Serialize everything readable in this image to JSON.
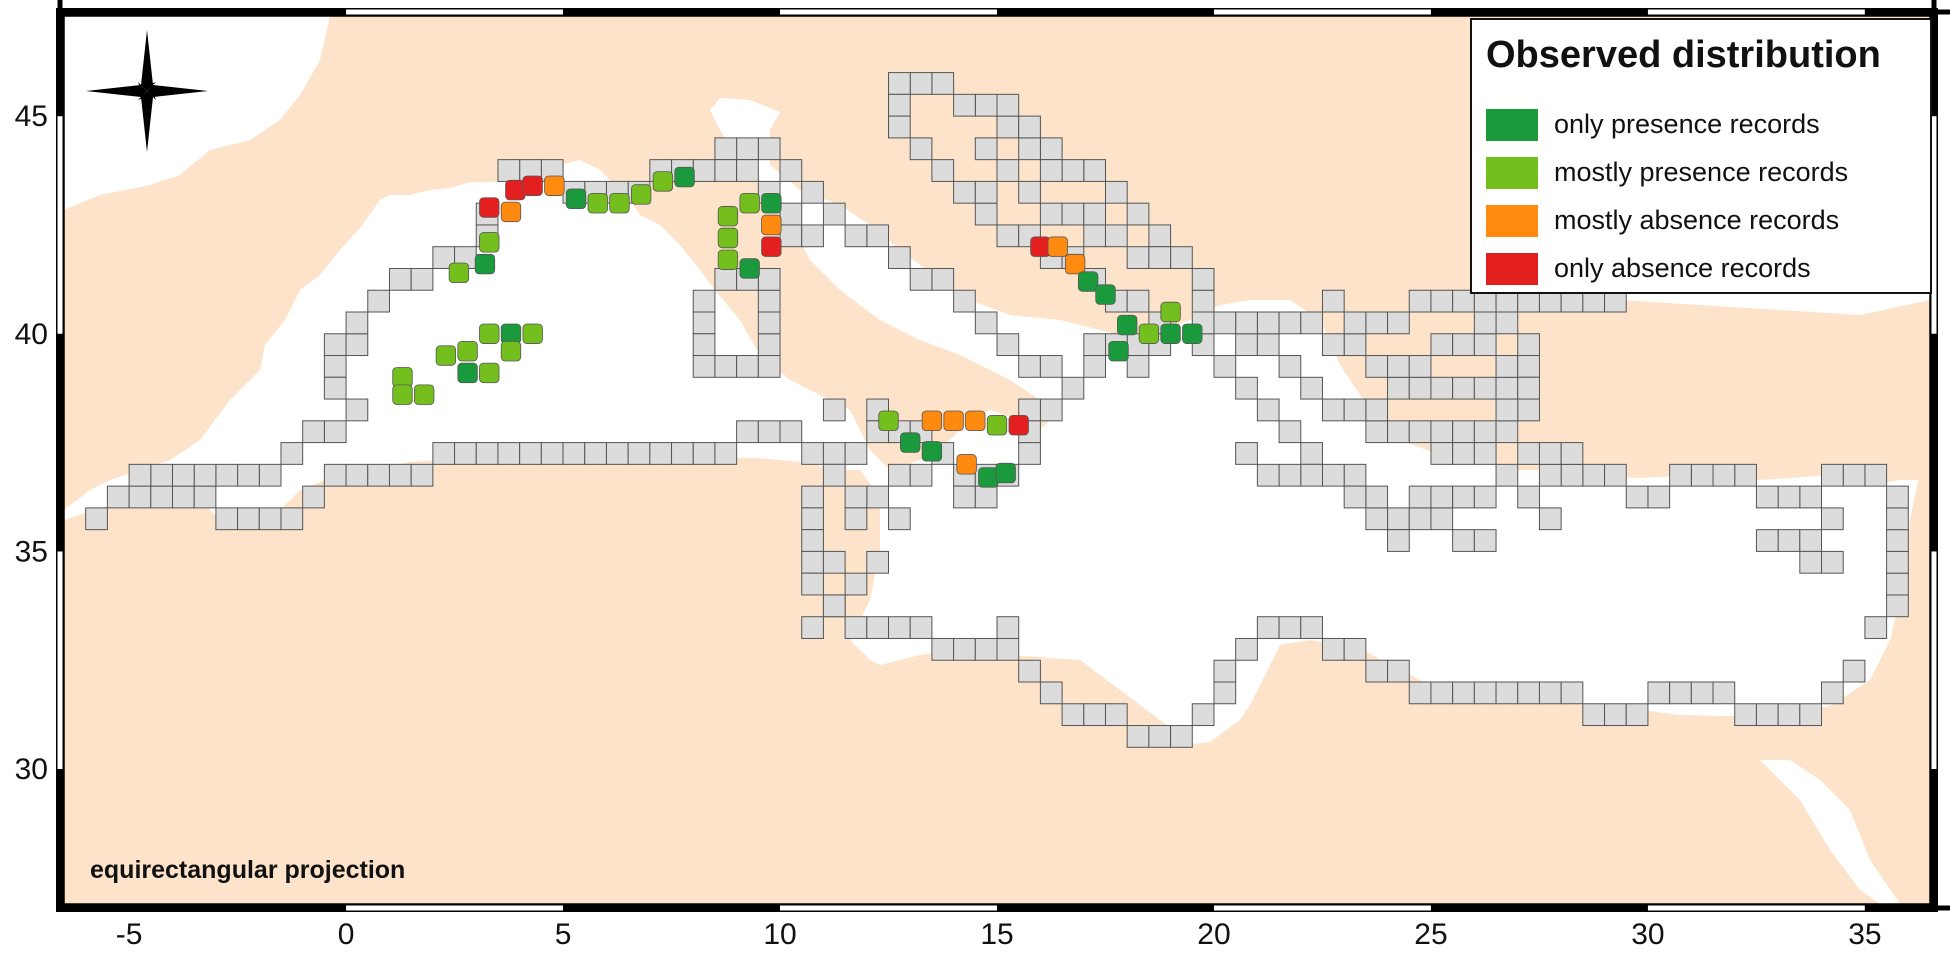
{
  "legend": {
    "title": "Observed distribution",
    "items": [
      {
        "label": "only presence records",
        "color": "#1a9a3c"
      },
      {
        "label": "mostly presence records",
        "color": "#74bf1e"
      },
      {
        "label": "mostly absence records",
        "color": "#ff8a10"
      },
      {
        "label": "only absence records",
        "color": "#e3201f"
      }
    ]
  },
  "projection_label": "equirectangular projection",
  "axes": {
    "x_ticks": [
      -5,
      0,
      5,
      10,
      15,
      20,
      25,
      30,
      35
    ],
    "y_ticks": [
      30,
      35,
      40,
      45
    ],
    "x_range": [
      -6.5,
      36.5
    ],
    "y_range": [
      26.9,
      47.3
    ]
  },
  "colors": {
    "land": "#fde3c9",
    "sea": "#ffffff",
    "grid_cell": "#dcdcdc",
    "grid_line": "#555555",
    "frame": "#000000"
  },
  "icons": {
    "compass": "compass-rose-icon"
  },
  "survey_grid_cells": [
    [
      -6.0,
      35.5
    ],
    [
      -5.5,
      36.0
    ],
    [
      -5.0,
      36.0
    ],
    [
      -4.5,
      36.0
    ],
    [
      -4.0,
      36.0
    ],
    [
      -3.5,
      36.0
    ],
    [
      -3.0,
      35.5
    ],
    [
      -2.5,
      35.5
    ],
    [
      -2.0,
      35.5
    ],
    [
      -1.5,
      35.5
    ],
    [
      -1.0,
      36.0
    ],
    [
      -0.5,
      36.5
    ],
    [
      0.0,
      36.5
    ],
    [
      0.5,
      36.5
    ],
    [
      1.0,
      36.5
    ],
    [
      1.5,
      36.5
    ],
    [
      2.0,
      37.0
    ],
    [
      2.5,
      37.0
    ],
    [
      3.0,
      37.0
    ],
    [
      3.5,
      37.0
    ],
    [
      4.0,
      37.0
    ],
    [
      4.5,
      37.0
    ],
    [
      5.0,
      37.0
    ],
    [
      5.5,
      37.0
    ],
    [
      6.0,
      37.0
    ],
    [
      6.5,
      37.0
    ],
    [
      7.0,
      37.0
    ],
    [
      7.5,
      37.0
    ],
    [
      8.0,
      37.0
    ],
    [
      8.5,
      37.0
    ],
    [
      9.0,
      37.5
    ],
    [
      9.5,
      37.5
    ],
    [
      10.0,
      37.5
    ],
    [
      10.5,
      37.0
    ],
    [
      11.0,
      37.0
    ],
    [
      11.0,
      36.5
    ],
    [
      10.5,
      36.0
    ],
    [
      10.5,
      35.5
    ],
    [
      10.5,
      35.0
    ],
    [
      10.5,
      34.5
    ],
    [
      10.5,
      34.0
    ],
    [
      11.0,
      33.5
    ],
    [
      11.5,
      33.0
    ],
    [
      12.0,
      33.0
    ],
    [
      12.5,
      33.0
    ],
    [
      13.0,
      33.0
    ],
    [
      13.5,
      32.5
    ],
    [
      14.0,
      32.5
    ],
    [
      14.5,
      32.5
    ],
    [
      15.0,
      32.5
    ],
    [
      15.5,
      32.0
    ],
    [
      16.0,
      31.5
    ],
    [
      16.5,
      31.0
    ],
    [
      17.0,
      31.0
    ],
    [
      17.5,
      31.0
    ],
    [
      18.0,
      30.5
    ],
    [
      18.5,
      30.5
    ],
    [
      19.0,
      30.5
    ],
    [
      19.5,
      31.0
    ],
    [
      20.0,
      31.5
    ],
    [
      20.0,
      32.0
    ],
    [
      20.5,
      32.5
    ],
    [
      21.0,
      33.0
    ],
    [
      21.5,
      33.0
    ],
    [
      22.0,
      33.0
    ],
    [
      22.5,
      32.5
    ],
    [
      23.0,
      32.5
    ],
    [
      23.5,
      32.0
    ],
    [
      24.0,
      32.0
    ],
    [
      24.5,
      31.5
    ],
    [
      25.0,
      31.5
    ],
    [
      25.5,
      31.5
    ],
    [
      26.0,
      31.5
    ],
    [
      26.5,
      31.5
    ],
    [
      27.0,
      31.5
    ],
    [
      27.5,
      31.5
    ],
    [
      28.0,
      31.5
    ],
    [
      28.5,
      31.0
    ],
    [
      29.0,
      31.0
    ],
    [
      29.5,
      31.0
    ],
    [
      30.0,
      31.5
    ],
    [
      30.5,
      31.5
    ],
    [
      31.0,
      31.5
    ],
    [
      31.5,
      31.5
    ],
    [
      32.0,
      31.0
    ],
    [
      32.5,
      31.0
    ],
    [
      33.0,
      31.0
    ],
    [
      33.5,
      31.0
    ],
    [
      34.0,
      31.5
    ],
    [
      34.5,
      32.0
    ],
    [
      35.0,
      33.0
    ],
    [
      35.5,
      33.5
    ],
    [
      35.5,
      34.0
    ],
    [
      35.5,
      34.5
    ],
    [
      35.5,
      35.0
    ],
    [
      35.5,
      35.5
    ],
    [
      35.5,
      36.0
    ],
    [
      35.0,
      36.5
    ],
    [
      34.5,
      36.5
    ],
    [
      34.0,
      36.5
    ],
    [
      33.5,
      36.0
    ],
    [
      33.0,
      36.0
    ],
    [
      32.5,
      36.0
    ],
    [
      32.0,
      36.5
    ],
    [
      31.5,
      36.5
    ],
    [
      31.0,
      36.5
    ],
    [
      30.5,
      36.5
    ],
    [
      30.0,
      36.0
    ],
    [
      29.5,
      36.0
    ],
    [
      29.0,
      36.5
    ],
    [
      28.5,
      36.5
    ],
    [
      28.0,
      36.5
    ],
    [
      27.5,
      36.5
    ],
    [
      27.0,
      37.0
    ],
    [
      33.0,
      35.0
    ],
    [
      33.5,
      35.0
    ],
    [
      34.0,
      35.5
    ],
    [
      32.5,
      35.0
    ],
    [
      34.0,
      34.5
    ],
    [
      33.5,
      34.5
    ],
    [
      24.0,
      35.5
    ],
    [
      24.5,
      35.5
    ],
    [
      25.0,
      35.5
    ],
    [
      25.5,
      35.0
    ],
    [
      26.0,
      35.0
    ],
    [
      23.5,
      35.5
    ],
    [
      24.0,
      35.0
    ],
    [
      23.0,
      36.5
    ],
    [
      22.5,
      36.5
    ],
    [
      22.0,
      37.0
    ],
    [
      21.5,
      37.5
    ],
    [
      21.0,
      38.0
    ],
    [
      20.5,
      38.5
    ],
    [
      20.0,
      39.0
    ],
    [
      19.5,
      39.5
    ],
    [
      23.5,
      37.5
    ],
    [
      24.0,
      37.5
    ],
    [
      24.5,
      37.5
    ],
    [
      25.0,
      37.5
    ],
    [
      25.5,
      37.5
    ],
    [
      26.0,
      37.5
    ],
    [
      26.5,
      37.5
    ],
    [
      23.5,
      38.0
    ],
    [
      24.0,
      38.5
    ],
    [
      24.5,
      38.5
    ],
    [
      25.0,
      38.5
    ],
    [
      25.5,
      38.5
    ],
    [
      26.0,
      38.5
    ],
    [
      26.5,
      38.5
    ],
    [
      23.5,
      39.0
    ],
    [
      24.0,
      39.0
    ],
    [
      24.5,
      39.0
    ],
    [
      25.0,
      39.5
    ],
    [
      25.5,
      39.5
    ],
    [
      26.0,
      39.5
    ],
    [
      23.0,
      39.5
    ],
    [
      23.5,
      40.0
    ],
    [
      24.0,
      40.0
    ],
    [
      24.5,
      40.5
    ],
    [
      25.0,
      40.5
    ],
    [
      25.5,
      40.5
    ],
    [
      26.0,
      40.5
    ],
    [
      26.5,
      40.0
    ],
    [
      26.5,
      39.0
    ],
    [
      23.0,
      40.0
    ],
    [
      22.5,
      40.5
    ],
    [
      22.5,
      39.5
    ],
    [
      22.0,
      38.5
    ],
    [
      22.5,
      38.0
    ],
    [
      23.0,
      38.0
    ],
    [
      22.0,
      36.5
    ],
    [
      21.5,
      36.5
    ],
    [
      21.0,
      36.5
    ],
    [
      20.5,
      37.0
    ],
    [
      25.0,
      37.0
    ],
    [
      25.5,
      37.0
    ],
    [
      26.0,
      37.0
    ],
    [
      26.5,
      36.5
    ],
    [
      27.0,
      36.0
    ],
    [
      27.5,
      35.5
    ],
    [
      24.5,
      36.0
    ],
    [
      25.0,
      36.0
    ],
    [
      25.5,
      36.0
    ],
    [
      26.0,
      36.0
    ],
    [
      23.5,
      36.0
    ],
    [
      23.0,
      36.0
    ],
    [
      26.0,
      40.0
    ],
    [
      26.5,
      40.5
    ],
    [
      27.0,
      40.5
    ],
    [
      27.5,
      40.5
    ],
    [
      28.0,
      40.5
    ],
    [
      28.5,
      40.5
    ],
    [
      29.0,
      40.5
    ],
    [
      27.0,
      39.5
    ],
    [
      27.0,
      39.0
    ],
    [
      27.0,
      38.5
    ],
    [
      27.0,
      38.0
    ],
    [
      26.5,
      38.0
    ],
    [
      27.5,
      37.0
    ],
    [
      28.0,
      37.0
    ],
    [
      19.5,
      40.0
    ],
    [
      19.5,
      40.5
    ],
    [
      19.5,
      41.0
    ],
    [
      19.0,
      41.5
    ],
    [
      18.5,
      42.0
    ],
    [
      18.0,
      42.5
    ],
    [
      17.5,
      43.0
    ],
    [
      17.0,
      43.5
    ],
    [
      16.5,
      43.5
    ],
    [
      16.0,
      44.0
    ],
    [
      15.5,
      44.0
    ],
    [
      15.0,
      44.5
    ],
    [
      14.5,
      45.0
    ],
    [
      14.0,
      45.0
    ],
    [
      13.5,
      45.5
    ],
    [
      13.0,
      45.5
    ],
    [
      12.5,
      45.5
    ],
    [
      12.5,
      45.0
    ],
    [
      12.5,
      44.5
    ],
    [
      13.0,
      44.0
    ],
    [
      13.5,
      43.5
    ],
    [
      14.0,
      43.0
    ],
    [
      14.5,
      42.5
    ],
    [
      15.0,
      42.0
    ],
    [
      15.5,
      42.0
    ],
    [
      16.0,
      41.5
    ],
    [
      16.5,
      41.5
    ],
    [
      17.0,
      41.0
    ],
    [
      17.5,
      40.5
    ],
    [
      18.0,
      40.5
    ],
    [
      18.5,
      40.0
    ],
    [
      18.0,
      39.5
    ],
    [
      17.5,
      39.5
    ],
    [
      17.0,
      39.5
    ],
    [
      17.0,
      39.0
    ],
    [
      16.5,
      38.5
    ],
    [
      16.0,
      38.0
    ],
    [
      15.5,
      38.0
    ],
    [
      14.5,
      40.0
    ],
    [
      15.0,
      39.5
    ],
    [
      15.5,
      39.0
    ],
    [
      16.0,
      39.0
    ],
    [
      14.0,
      40.5
    ],
    [
      13.5,
      41.0
    ],
    [
      13.0,
      41.0
    ],
    [
      12.5,
      41.5
    ],
    [
      12.0,
      42.0
    ],
    [
      11.5,
      42.0
    ],
    [
      11.0,
      42.5
    ],
    [
      10.5,
      43.0
    ],
    [
      10.0,
      43.5
    ],
    [
      9.5,
      44.0
    ],
    [
      9.0,
      44.0
    ],
    [
      8.5,
      44.0
    ],
    [
      8.0,
      43.5
    ],
    [
      7.5,
      43.5
    ],
    [
      15.0,
      45.0
    ],
    [
      15.5,
      44.5
    ],
    [
      16.0,
      43.5
    ],
    [
      14.5,
      44.0
    ],
    [
      15.0,
      43.5
    ],
    [
      15.5,
      43.0
    ],
    [
      16.0,
      42.5
    ],
    [
      16.5,
      42.5
    ],
    [
      17.0,
      42.0
    ],
    [
      17.5,
      42.0
    ],
    [
      18.0,
      41.5
    ],
    [
      18.5,
      41.5
    ],
    [
      14.5,
      43.0
    ],
    [
      17.0,
      42.5
    ],
    [
      12.0,
      38.0
    ],
    [
      12.5,
      37.5
    ],
    [
      13.0,
      37.5
    ],
    [
      13.5,
      37.0
    ],
    [
      14.0,
      36.5
    ],
    [
      14.5,
      36.5
    ],
    [
      15.0,
      36.5
    ],
    [
      15.5,
      37.0
    ],
    [
      15.5,
      37.5
    ],
    [
      12.0,
      37.5
    ],
    [
      12.5,
      36.5
    ],
    [
      13.0,
      36.5
    ],
    [
      12.0,
      36.0
    ],
    [
      11.5,
      36.0
    ],
    [
      11.5,
      35.5
    ],
    [
      12.5,
      35.5
    ],
    [
      14.0,
      36.0
    ],
    [
      14.5,
      36.0
    ],
    [
      11.5,
      37.0
    ],
    [
      11.0,
      38.0
    ],
    [
      1.0,
      41.0
    ],
    [
      1.5,
      41.0
    ],
    [
      2.0,
      41.5
    ],
    [
      2.5,
      41.5
    ],
    [
      3.0,
      42.0
    ],
    [
      3.0,
      42.5
    ],
    [
      -0.5,
      39.5
    ],
    [
      0.0,
      39.5
    ],
    [
      0.0,
      40.0
    ],
    [
      0.5,
      40.5
    ],
    [
      -0.5,
      39.0
    ],
    [
      -0.5,
      38.5
    ],
    [
      0.0,
      38.0
    ],
    [
      -0.5,
      37.5
    ],
    [
      -1.0,
      37.5
    ],
    [
      -1.5,
      37.0
    ],
    [
      -2.0,
      36.5
    ],
    [
      -2.5,
      36.5
    ],
    [
      -3.0,
      36.5
    ],
    [
      -3.5,
      36.5
    ],
    [
      -4.0,
      36.5
    ],
    [
      -4.5,
      36.5
    ],
    [
      -5.0,
      36.5
    ],
    [
      8.0,
      40.5
    ],
    [
      8.0,
      40.0
    ],
    [
      8.0,
      39.5
    ],
    [
      8.0,
      39.0
    ],
    [
      8.5,
      39.0
    ],
    [
      9.0,
      39.0
    ],
    [
      9.5,
      39.0
    ],
    [
      9.5,
      39.5
    ],
    [
      9.5,
      40.0
    ],
    [
      9.5,
      40.5
    ],
    [
      9.5,
      41.0
    ],
    [
      8.5,
      41.0
    ],
    [
      9.0,
      41.0
    ],
    [
      10.0,
      42.0
    ],
    [
      10.5,
      42.0
    ],
    [
      7.0,
      43.5
    ],
    [
      6.5,
      43.0
    ],
    [
      6.0,
      43.0
    ],
    [
      5.5,
      43.0
    ],
    [
      5.0,
      43.0
    ],
    [
      4.5,
      43.5
    ],
    [
      4.0,
      43.5
    ],
    [
      3.5,
      43.5
    ],
    [
      8.5,
      43.5
    ],
    [
      9.0,
      43.5
    ],
    [
      9.5,
      43.0
    ],
    [
      10.0,
      42.5
    ],
    [
      18.5,
      39.5
    ],
    [
      18.0,
      39.0
    ],
    [
      20.5,
      39.5
    ],
    [
      21.0,
      39.5
    ],
    [
      21.5,
      39.0
    ],
    [
      21.0,
      40.0
    ],
    [
      21.5,
      40.0
    ],
    [
      22.0,
      40.0
    ],
    [
      20.5,
      40.0
    ],
    [
      20.0,
      40.0
    ],
    [
      11.0,
      33.5
    ],
    [
      10.5,
      33.0
    ],
    [
      15.0,
      33.0
    ],
    [
      12.0,
      34.5
    ],
    [
      11.5,
      34.0
    ],
    [
      11.0,
      34.5
    ]
  ],
  "observation_cells": [
    {
      "lon": 3.3,
      "lat": 42.9,
      "status": "only absence records"
    },
    {
      "lon": 3.9,
      "lat": 43.3,
      "status": "only absence records"
    },
    {
      "lon": 4.3,
      "lat": 43.4,
      "status": "only absence records"
    },
    {
      "lon": 3.8,
      "lat": 42.8,
      "status": "mostly absence records"
    },
    {
      "lon": 4.8,
      "lat": 43.4,
      "status": "mostly absence records"
    },
    {
      "lon": 5.3,
      "lat": 43.1,
      "status": "only presence records"
    },
    {
      "lon": 5.8,
      "lat": 43.0,
      "status": "mostly presence records"
    },
    {
      "lon": 6.3,
      "lat": 43.0,
      "status": "mostly presence records"
    },
    {
      "lon": 6.8,
      "lat": 43.2,
      "status": "mostly presence records"
    },
    {
      "lon": 7.3,
      "lat": 43.5,
      "status": "mostly presence records"
    },
    {
      "lon": 7.8,
      "lat": 43.6,
      "status": "only presence records"
    },
    {
      "lon": 3.3,
      "lat": 42.1,
      "status": "mostly presence records"
    },
    {
      "lon": 3.2,
      "lat": 41.6,
      "status": "only presence records"
    },
    {
      "lon": 2.6,
      "lat": 41.4,
      "status": "mostly presence records"
    },
    {
      "lon": 1.3,
      "lat": 39.0,
      "status": "mostly presence records"
    },
    {
      "lon": 1.3,
      "lat": 38.6,
      "status": "mostly presence records"
    },
    {
      "lon": 1.8,
      "lat": 38.6,
      "status": "mostly presence records"
    },
    {
      "lon": 2.3,
      "lat": 39.5,
      "status": "mostly presence records"
    },
    {
      "lon": 2.8,
      "lat": 39.6,
      "status": "mostly presence records"
    },
    {
      "lon": 2.8,
      "lat": 39.1,
      "status": "only presence records"
    },
    {
      "lon": 3.3,
      "lat": 39.1,
      "status": "mostly presence records"
    },
    {
      "lon": 3.3,
      "lat": 40.0,
      "status": "mostly presence records"
    },
    {
      "lon": 3.8,
      "lat": 40.0,
      "status": "only presence records"
    },
    {
      "lon": 4.3,
      "lat": 40.0,
      "status": "mostly presence records"
    },
    {
      "lon": 3.8,
      "lat": 39.6,
      "status": "mostly presence records"
    },
    {
      "lon": 8.8,
      "lat": 42.7,
      "status": "mostly presence records"
    },
    {
      "lon": 8.8,
      "lat": 42.2,
      "status": "mostly presence records"
    },
    {
      "lon": 8.8,
      "lat": 41.7,
      "status": "mostly presence records"
    },
    {
      "lon": 9.3,
      "lat": 43.0,
      "status": "mostly presence records"
    },
    {
      "lon": 9.3,
      "lat": 41.5,
      "status": "only presence records"
    },
    {
      "lon": 9.8,
      "lat": 43.0,
      "status": "only presence records"
    },
    {
      "lon": 9.8,
      "lat": 42.5,
      "status": "mostly absence records"
    },
    {
      "lon": 9.8,
      "lat": 42.0,
      "status": "only absence records"
    },
    {
      "lon": 12.5,
      "lat": 38.0,
      "status": "mostly presence records"
    },
    {
      "lon": 13.0,
      "lat": 37.5,
      "status": "only presence records"
    },
    {
      "lon": 13.5,
      "lat": 37.3,
      "status": "only presence records"
    },
    {
      "lon": 14.3,
      "lat": 37.0,
      "status": "mostly absence records"
    },
    {
      "lon": 14.8,
      "lat": 36.7,
      "status": "only presence records"
    },
    {
      "lon": 15.2,
      "lat": 36.8,
      "status": "only presence records"
    },
    {
      "lon": 13.5,
      "lat": 38.0,
      "status": "mostly absence records"
    },
    {
      "lon": 14.0,
      "lat": 38.0,
      "status": "mostly absence records"
    },
    {
      "lon": 14.5,
      "lat": 38.0,
      "status": "mostly absence records"
    },
    {
      "lon": 15.0,
      "lat": 37.9,
      "status": "mostly presence records"
    },
    {
      "lon": 15.5,
      "lat": 37.9,
      "status": "only absence records"
    },
    {
      "lon": 16.0,
      "lat": 42.0,
      "status": "only absence records"
    },
    {
      "lon": 16.4,
      "lat": 42.0,
      "status": "mostly absence records"
    },
    {
      "lon": 16.8,
      "lat": 41.6,
      "status": "mostly absence records"
    },
    {
      "lon": 17.1,
      "lat": 41.2,
      "status": "only presence records"
    },
    {
      "lon": 17.5,
      "lat": 40.9,
      "status": "only presence records"
    },
    {
      "lon": 18.0,
      "lat": 40.2,
      "status": "only presence records"
    },
    {
      "lon": 18.5,
      "lat": 40.0,
      "status": "mostly presence records"
    },
    {
      "lon": 19.0,
      "lat": 40.0,
      "status": "only presence records"
    },
    {
      "lon": 19.5,
      "lat": 40.0,
      "status": "only presence records"
    },
    {
      "lon": 19.0,
      "lat": 40.5,
      "status": "mostly presence records"
    },
    {
      "lon": 17.8,
      "lat": 39.6,
      "status": "only presence records"
    }
  ]
}
